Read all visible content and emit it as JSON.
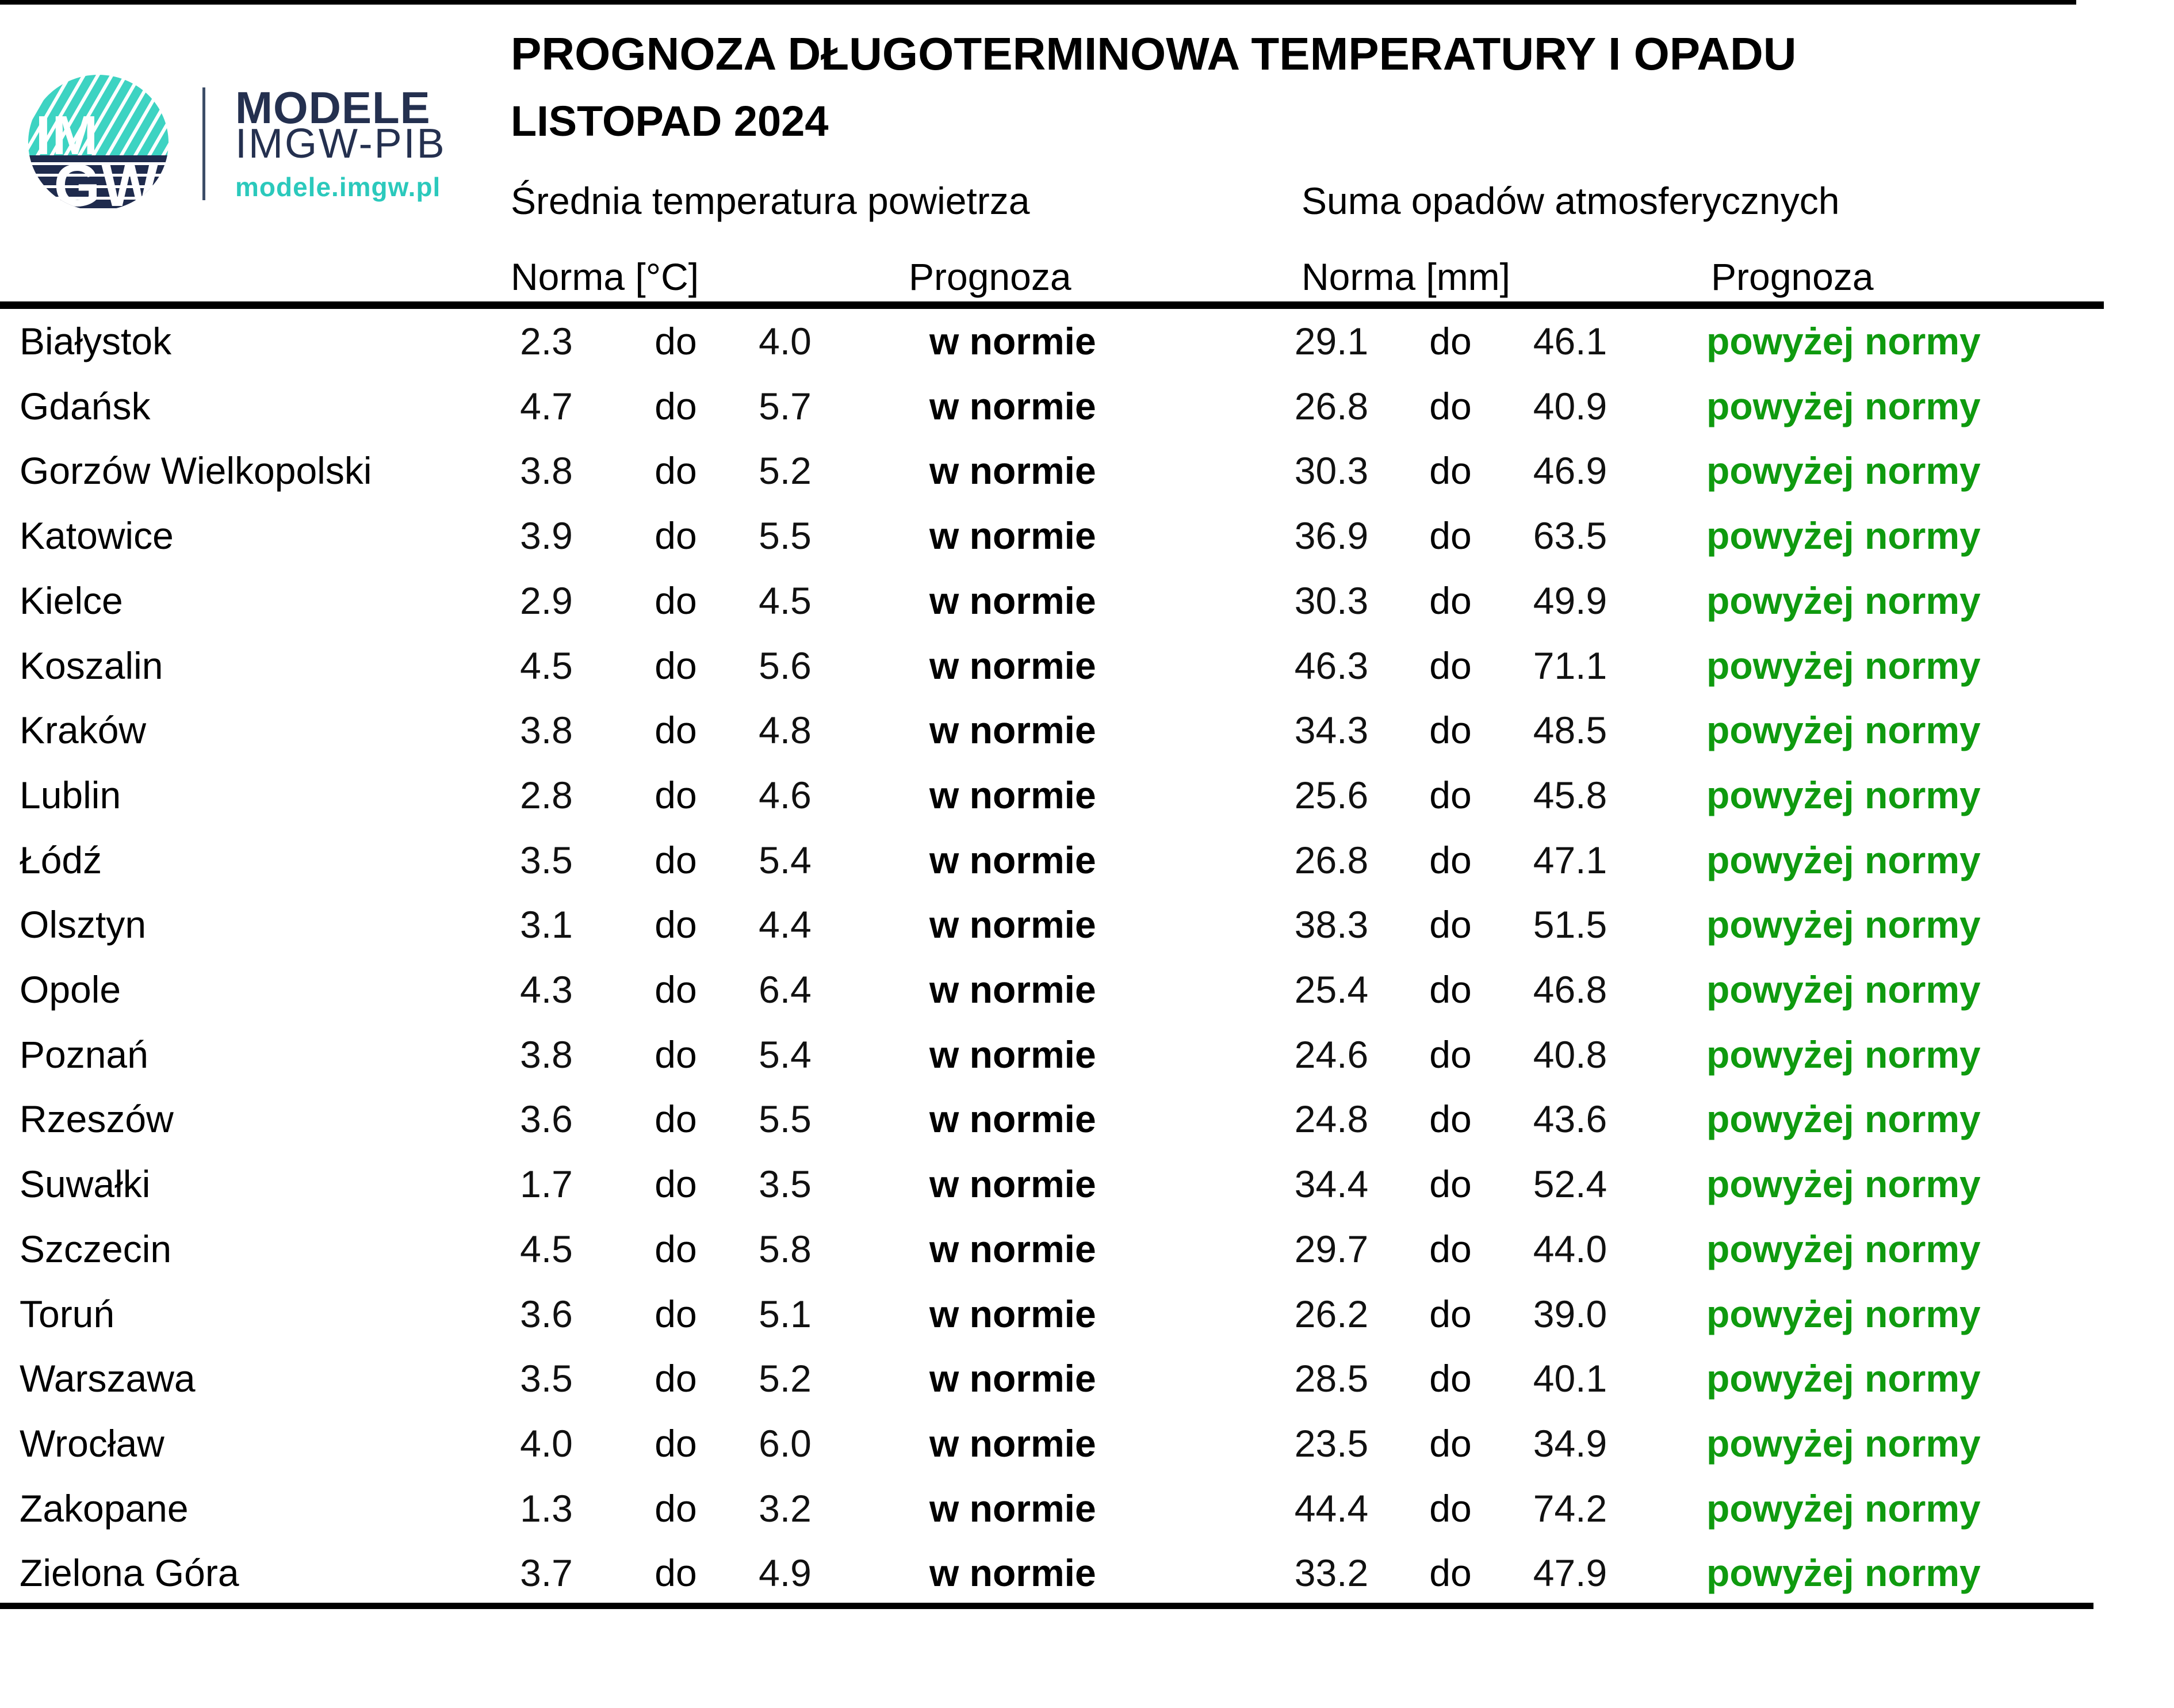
{
  "header": {
    "title": "PROGNOZA DŁUGOTERMINOWA TEMPERATURY I OPADU",
    "subtitle": "LISTOPAD 2024"
  },
  "logo": {
    "sigil_top": "IM",
    "sigil_bottom": "GW",
    "brand_line1": "MODELE",
    "brand_line2": "IMGW-PIB",
    "brand_url": "modele.imgw.pl"
  },
  "colors": {
    "forecast_above": "#0F9A0F",
    "forecast_normal": "#000000",
    "brand_navy": "#24304F",
    "brand_teal": "#2BC9BC",
    "logo_teal": "#3DD3C2",
    "logo_navy": "#1F2B4D",
    "rule_black": "#000000"
  },
  "table": {
    "range_word": "do",
    "sections": [
      {
        "header": "Średnia temperatura powietrza",
        "norm_label": "Norma [°C]",
        "forecast_label": "Prognoza"
      },
      {
        "header": "Suma opadów atmosferycznych",
        "norm_label": "Norma [mm]",
        "forecast_label": "Prognoza"
      }
    ],
    "rows": [
      {
        "city": "Białystok",
        "temp_norm_low": "2.3",
        "temp_norm_high": "4.0",
        "temp_forecast": "w normie",
        "precip_norm_low": "29.1",
        "precip_norm_high": "46.1",
        "precip_forecast": "powyżej normy"
      },
      {
        "city": "Gdańsk",
        "temp_norm_low": "4.7",
        "temp_norm_high": "5.7",
        "temp_forecast": "w normie",
        "precip_norm_low": "26.8",
        "precip_norm_high": "40.9",
        "precip_forecast": "powyżej normy"
      },
      {
        "city": "Gorzów Wielkopolski",
        "temp_norm_low": "3.8",
        "temp_norm_high": "5.2",
        "temp_forecast": "w normie",
        "precip_norm_low": "30.3",
        "precip_norm_high": "46.9",
        "precip_forecast": "powyżej normy"
      },
      {
        "city": "Katowice",
        "temp_norm_low": "3.9",
        "temp_norm_high": "5.5",
        "temp_forecast": "w normie",
        "precip_norm_low": "36.9",
        "precip_norm_high": "63.5",
        "precip_forecast": "powyżej normy"
      },
      {
        "city": "Kielce",
        "temp_norm_low": "2.9",
        "temp_norm_high": "4.5",
        "temp_forecast": "w normie",
        "precip_norm_low": "30.3",
        "precip_norm_high": "49.9",
        "precip_forecast": "powyżej normy"
      },
      {
        "city": "Koszalin",
        "temp_norm_low": "4.5",
        "temp_norm_high": "5.6",
        "temp_forecast": "w normie",
        "precip_norm_low": "46.3",
        "precip_norm_high": "71.1",
        "precip_forecast": "powyżej normy"
      },
      {
        "city": "Kraków",
        "temp_norm_low": "3.8",
        "temp_norm_high": "4.8",
        "temp_forecast": "w normie",
        "precip_norm_low": "34.3",
        "precip_norm_high": "48.5",
        "precip_forecast": "powyżej normy"
      },
      {
        "city": "Lublin",
        "temp_norm_low": "2.8",
        "temp_norm_high": "4.6",
        "temp_forecast": "w normie",
        "precip_norm_low": "25.6",
        "precip_norm_high": "45.8",
        "precip_forecast": "powyżej normy"
      },
      {
        "city": "Łódź",
        "temp_norm_low": "3.5",
        "temp_norm_high": "5.4",
        "temp_forecast": "w normie",
        "precip_norm_low": "26.8",
        "precip_norm_high": "47.1",
        "precip_forecast": "powyżej normy"
      },
      {
        "city": "Olsztyn",
        "temp_norm_low": "3.1",
        "temp_norm_high": "4.4",
        "temp_forecast": "w normie",
        "precip_norm_low": "38.3",
        "precip_norm_high": "51.5",
        "precip_forecast": "powyżej normy"
      },
      {
        "city": "Opole",
        "temp_norm_low": "4.3",
        "temp_norm_high": "6.4",
        "temp_forecast": "w normie",
        "precip_norm_low": "25.4",
        "precip_norm_high": "46.8",
        "precip_forecast": "powyżej normy"
      },
      {
        "city": "Poznań",
        "temp_norm_low": "3.8",
        "temp_norm_high": "5.4",
        "temp_forecast": "w normie",
        "precip_norm_low": "24.6",
        "precip_norm_high": "40.8",
        "precip_forecast": "powyżej normy"
      },
      {
        "city": "Rzeszów",
        "temp_norm_low": "3.6",
        "temp_norm_high": "5.5",
        "temp_forecast": "w normie",
        "precip_norm_low": "24.8",
        "precip_norm_high": "43.6",
        "precip_forecast": "powyżej normy"
      },
      {
        "city": "Suwałki",
        "temp_norm_low": "1.7",
        "temp_norm_high": "3.5",
        "temp_forecast": "w normie",
        "precip_norm_low": "34.4",
        "precip_norm_high": "52.4",
        "precip_forecast": "powyżej normy"
      },
      {
        "city": "Szczecin",
        "temp_norm_low": "4.5",
        "temp_norm_high": "5.8",
        "temp_forecast": "w normie",
        "precip_norm_low": "29.7",
        "precip_norm_high": "44.0",
        "precip_forecast": "powyżej normy"
      },
      {
        "city": "Toruń",
        "temp_norm_low": "3.6",
        "temp_norm_high": "5.1",
        "temp_forecast": "w normie",
        "precip_norm_low": "26.2",
        "precip_norm_high": "39.0",
        "precip_forecast": "powyżej normy"
      },
      {
        "city": "Warszawa",
        "temp_norm_low": "3.5",
        "temp_norm_high": "5.2",
        "temp_forecast": "w normie",
        "precip_norm_low": "28.5",
        "precip_norm_high": "40.1",
        "precip_forecast": "powyżej normy"
      },
      {
        "city": "Wrocław",
        "temp_norm_low": "4.0",
        "temp_norm_high": "6.0",
        "temp_forecast": "w normie",
        "precip_norm_low": "23.5",
        "precip_norm_high": "34.9",
        "precip_forecast": "powyżej normy"
      },
      {
        "city": "Zakopane",
        "temp_norm_low": "1.3",
        "temp_norm_high": "3.2",
        "temp_forecast": "w normie",
        "precip_norm_low": "44.4",
        "precip_norm_high": "74.2",
        "precip_forecast": "powyżej normy"
      },
      {
        "city": "Zielona Góra",
        "temp_norm_low": "3.7",
        "temp_norm_high": "4.9",
        "temp_forecast": "w normie",
        "precip_norm_low": "33.2",
        "precip_norm_high": "47.9",
        "precip_forecast": "powyżej normy"
      }
    ]
  }
}
